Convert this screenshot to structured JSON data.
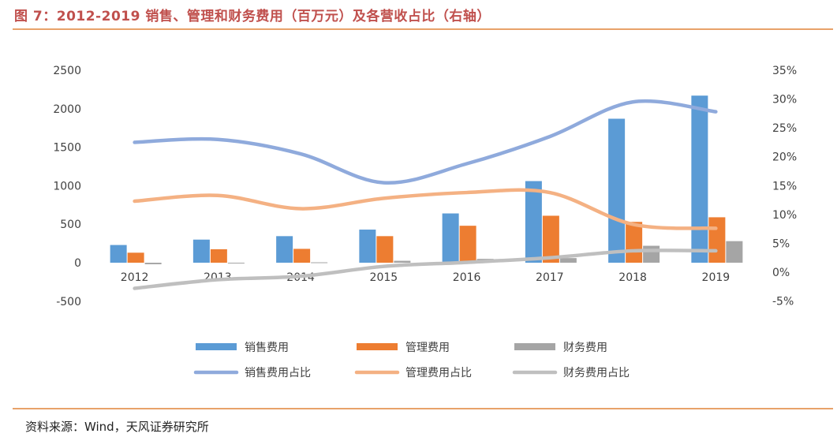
{
  "header": {
    "title": "图 7：2012-2019 销售、管理和财务费用（百万元）及各营收占比（右轴）"
  },
  "footer": {
    "source": "资料来源：Wind，天风证券研究所"
  },
  "chart_data": {
    "type": "bar",
    "categories": [
      "2012",
      "2013",
      "2014",
      "2015",
      "2016",
      "2017",
      "2018",
      "2019"
    ],
    "left_axis": {
      "ylim": [
        -500,
        2500
      ],
      "ticks": [
        -500,
        0,
        500,
        1000,
        1500,
        2000,
        2500
      ],
      "tick_labels": [
        "-500",
        "0",
        "500",
        "1000",
        "1500",
        "2000",
        "2500"
      ]
    },
    "right_axis": {
      "ylim": [
        -5,
        35
      ],
      "ticks": [
        -5,
        0,
        5,
        10,
        15,
        20,
        25,
        30,
        35
      ],
      "tick_labels": [
        "-5%",
        "0%",
        "5%",
        "10%",
        "15%",
        "20%",
        "25%",
        "30%",
        "35%"
      ]
    },
    "bar_series": [
      {
        "name": "销售费用",
        "color": "#5b9bd5",
        "values": [
          230,
          300,
          345,
          430,
          640,
          1060,
          1870,
          2170
        ]
      },
      {
        "name": "管理费用",
        "color": "#ed7d31",
        "values": [
          130,
          175,
          180,
          345,
          480,
          610,
          530,
          590
        ]
      },
      {
        "name": "财务费用",
        "color": "#a5a5a5",
        "values": [
          -20,
          -10,
          5,
          25,
          50,
          60,
          220,
          280
        ]
      }
    ],
    "line_series": [
      {
        "name": "销售费用占比",
        "color": "#8faadc",
        "values": [
          22.5,
          23.0,
          20.5,
          15.5,
          18.8,
          23.5,
          29.5,
          27.8
        ]
      },
      {
        "name": "管理费用占比",
        "color": "#f4b183",
        "values": [
          12.3,
          13.3,
          11.0,
          12.8,
          13.8,
          13.8,
          8.3,
          7.6
        ]
      },
      {
        "name": "财务费用占比",
        "color": "#bfbfbf",
        "values": [
          -2.8,
          -1.3,
          -0.7,
          1.0,
          1.7,
          2.5,
          3.7,
          3.7
        ]
      }
    ],
    "legend": {
      "placement": "bottom",
      "rows": [
        [
          "销售费用",
          "管理费用",
          "财务费用"
        ],
        [
          "销售费用占比",
          "管理费用占比",
          "财务费用占比"
        ]
      ]
    },
    "grid": false
  }
}
